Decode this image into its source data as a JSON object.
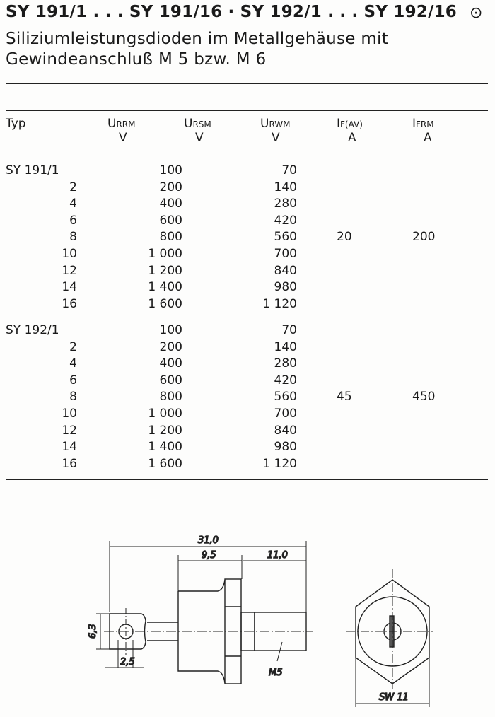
{
  "header": {
    "title": "SY 191/1 . . . SY 191/16 · SY 192/1 . . . SY 192/16",
    "symbol": "⊙",
    "subtitle_line1": "Siliziumleistungsdioden im Metallgehäuse mit",
    "subtitle_line2": "Gewindeanschluß M 5 bzw. M 6"
  },
  "table": {
    "columns": [
      {
        "name": "Typ",
        "unit": ""
      },
      {
        "name": "U",
        "sub": "RRM",
        "unit": "V"
      },
      {
        "name": "U",
        "sub": "RSM",
        "unit": "V"
      },
      {
        "name": "U",
        "sub": "RWM",
        "unit": "V"
      },
      {
        "name": "I",
        "sub": "F(AV)",
        "unit": "A"
      },
      {
        "name": "I",
        "sub": "FRM",
        "unit": "A"
      }
    ],
    "groups": [
      {
        "if_av": "20",
        "ifrm": "200",
        "rows": [
          {
            "typ": "SY 191/1",
            "urrm": "100",
            "urwm": "70"
          },
          {
            "typ": "2",
            "urrm": "200",
            "urwm": "140"
          },
          {
            "typ": "4",
            "urrm": "400",
            "urwm": "280"
          },
          {
            "typ": "6",
            "urrm": "600",
            "urwm": "420"
          },
          {
            "typ": "8",
            "urrm": "800",
            "urwm": "560"
          },
          {
            "typ": "10",
            "urrm": "1 000",
            "urwm": "700"
          },
          {
            "typ": "12",
            "urrm": "1 200",
            "urwm": "840"
          },
          {
            "typ": "14",
            "urrm": "1 400",
            "urwm": "980"
          },
          {
            "typ": "16",
            "urrm": "1 600",
            "urwm": "1 120"
          }
        ]
      },
      {
        "if_av": "45",
        "ifrm": "450",
        "rows": [
          {
            "typ": "SY 192/1",
            "urrm": "100",
            "urwm": "70"
          },
          {
            "typ": "2",
            "urrm": "200",
            "urwm": "140"
          },
          {
            "typ": "4",
            "urrm": "400",
            "urwm": "280"
          },
          {
            "typ": "6",
            "urrm": "600",
            "urwm": "420"
          },
          {
            "typ": "8",
            "urrm": "800",
            "urwm": "560"
          },
          {
            "typ": "10",
            "urrm": "1 000",
            "urwm": "700"
          },
          {
            "typ": "12",
            "urrm": "1 200",
            "urwm": "840"
          },
          {
            "typ": "14",
            "urrm": "1 400",
            "urwm": "980"
          },
          {
            "typ": "16",
            "urrm": "1 600",
            "urwm": "1 120"
          }
        ]
      }
    ]
  },
  "drawing": {
    "dim_total": "31,0",
    "dim_body": "9,5",
    "dim_thread": "11,0",
    "dim_lug_height": "6,3",
    "dim_hole": "2,5",
    "thread_label": "M5",
    "wrench_size": "SW 11"
  }
}
